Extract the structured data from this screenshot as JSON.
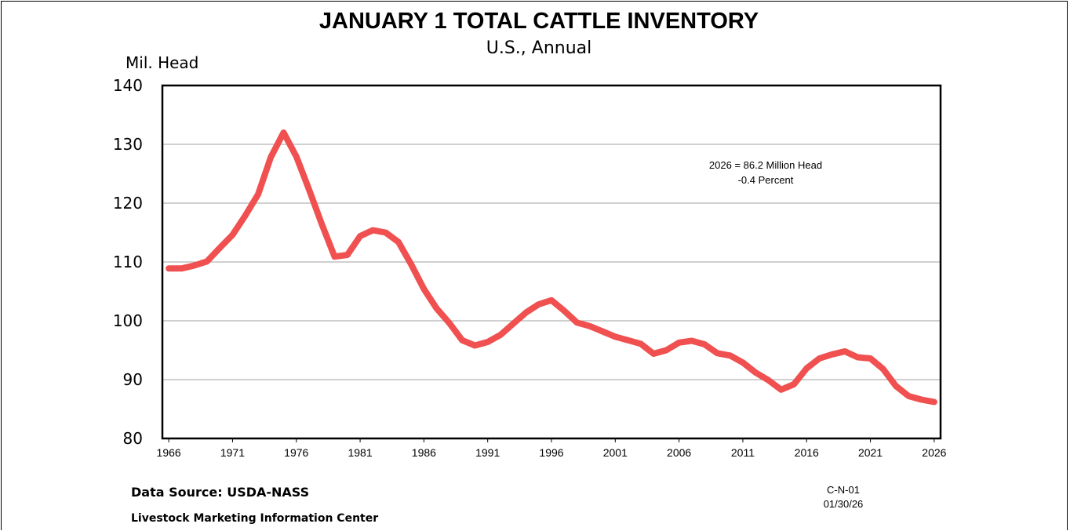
{
  "chart_data": {
    "type": "line",
    "title": "JANUARY 1 TOTAL CATTLE INVENTORY",
    "subtitle": "U.S., Annual",
    "ylabel": "Mil. Head",
    "xlabel": "",
    "ylim": [
      80,
      140
    ],
    "xlim": [
      1965.5,
      2026.5
    ],
    "yticks": [
      80,
      90,
      100,
      110,
      120,
      130,
      140
    ],
    "xticks": [
      1966,
      1971,
      1976,
      1981,
      1986,
      1991,
      1996,
      2001,
      2006,
      2011,
      2016,
      2021,
      2026
    ],
    "grid": "horizontal",
    "line_color": "#f05050",
    "annotation": [
      "2026 = 86.2 Million Head",
      "-0.4 Percent"
    ],
    "x": [
      1966,
      1967,
      1968,
      1969,
      1970,
      1971,
      1972,
      1973,
      1974,
      1975,
      1976,
      1977,
      1978,
      1979,
      1980,
      1981,
      1982,
      1983,
      1984,
      1985,
      1986,
      1987,
      1988,
      1989,
      1990,
      1991,
      1992,
      1993,
      1994,
      1995,
      1996,
      1997,
      1998,
      1999,
      2000,
      2001,
      2002,
      2003,
      2004,
      2005,
      2006,
      2007,
      2008,
      2009,
      2010,
      2011,
      2012,
      2013,
      2014,
      2015,
      2016,
      2017,
      2018,
      2019,
      2020,
      2021,
      2022,
      2023,
      2024,
      2025,
      2026
    ],
    "series": [
      {
        "values": [
          108.9,
          108.9,
          109.4,
          110.1,
          112.4,
          114.6,
          117.9,
          121.5,
          127.8,
          132.0,
          127.9,
          122.3,
          116.4,
          110.9,
          111.2,
          114.4,
          115.4,
          115.0,
          113.4,
          109.6,
          105.4,
          102.1,
          99.6,
          96.7,
          95.8,
          96.4,
          97.6,
          99.5,
          101.4,
          102.8,
          103.5,
          101.7,
          99.7,
          99.1,
          98.2,
          97.3,
          96.7,
          96.1,
          94.4,
          95.0,
          96.3,
          96.6,
          96.0,
          94.5,
          94.1,
          92.9,
          91.2,
          89.9,
          88.3,
          89.2,
          91.9,
          93.6,
          94.3,
          94.8,
          93.8,
          93.6,
          91.8,
          88.9,
          87.2,
          86.6,
          86.2
        ]
      }
    ]
  },
  "footer": {
    "source": "Data Source:  USDA-NASS",
    "center": "Livestock Marketing Information Center",
    "code": "C-N-01",
    "date": "01/30/26"
  }
}
